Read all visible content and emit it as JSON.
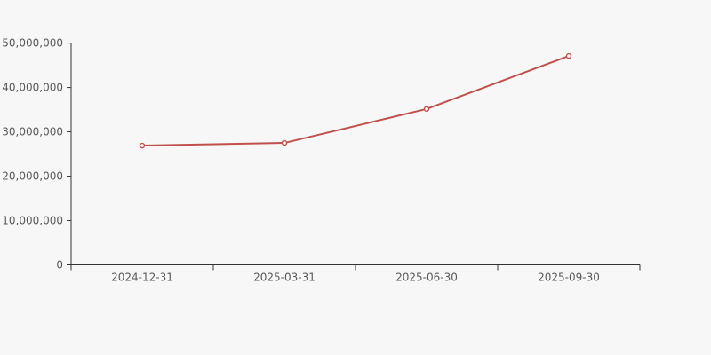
{
  "chart_data": {
    "type": "line",
    "title": "",
    "xlabel": "",
    "ylabel": "",
    "categories": [
      "2024-12-31",
      "2025-03-31",
      "2025-06-30",
      "2025-09-30"
    ],
    "values": [
      26900000,
      27500000,
      35150000,
      47100000
    ],
    "ylim": [
      0,
      50000000
    ],
    "y_ticks": [
      0,
      10000000,
      20000000,
      30000000,
      40000000,
      50000000
    ],
    "y_tick_labels": [
      "0",
      "10,000,000",
      "20,000,000",
      "30,000,000",
      "40,000,000",
      "50,000,000"
    ],
    "grid": false,
    "legend": false,
    "marker": "hollow-circle",
    "colors": {
      "line": "#c0504d",
      "marker_fill": "#ffffff",
      "axis": "#333333",
      "tick_label": "#595959",
      "background": "#f7f7f7"
    }
  }
}
